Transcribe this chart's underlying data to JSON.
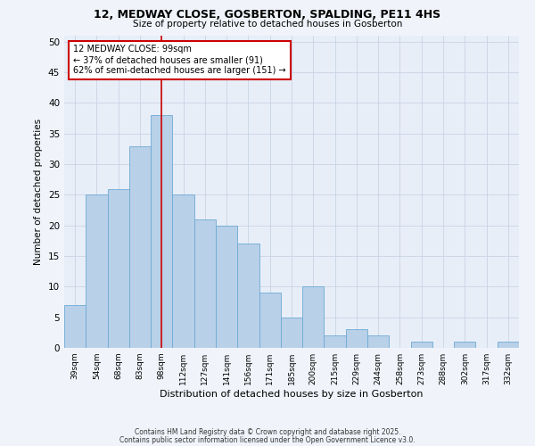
{
  "title_line1": "12, MEDWAY CLOSE, GOSBERTON, SPALDING, PE11 4HS",
  "title_line2": "Size of property relative to detached houses in Gosberton",
  "xlabel": "Distribution of detached houses by size in Gosberton",
  "ylabel": "Number of detached properties",
  "categories": [
    "39sqm",
    "54sqm",
    "68sqm",
    "83sqm",
    "98sqm",
    "112sqm",
    "127sqm",
    "141sqm",
    "156sqm",
    "171sqm",
    "185sqm",
    "200sqm",
    "215sqm",
    "229sqm",
    "244sqm",
    "258sqm",
    "273sqm",
    "288sqm",
    "302sqm",
    "317sqm",
    "332sqm"
  ],
  "values": [
    7,
    25,
    26,
    33,
    38,
    25,
    21,
    20,
    17,
    9,
    5,
    10,
    2,
    3,
    2,
    0,
    1,
    0,
    1,
    0,
    1
  ],
  "bar_color": "#b8d0e8",
  "bar_edge_color": "#6daad4",
  "bar_edge_width": 0.6,
  "red_line_index": 4,
  "red_line_color": "#cc0000",
  "annotation_text": "12 MEDWAY CLOSE: 99sqm\n← 37% of detached houses are smaller (91)\n62% of semi-detached houses are larger (151) →",
  "annotation_box_color": "#ffffff",
  "annotation_box_edge": "#cc0000",
  "ylim": [
    0,
    51
  ],
  "yticks": [
    0,
    5,
    10,
    15,
    20,
    25,
    30,
    35,
    40,
    45,
    50
  ],
  "grid_color": "#c8d4e4",
  "background_color": "#e8eef8",
  "fig_background": "#f0f4fa",
  "footer_line1": "Contains HM Land Registry data © Crown copyright and database right 2025.",
  "footer_line2": "Contains public sector information licensed under the Open Government Licence v3.0."
}
